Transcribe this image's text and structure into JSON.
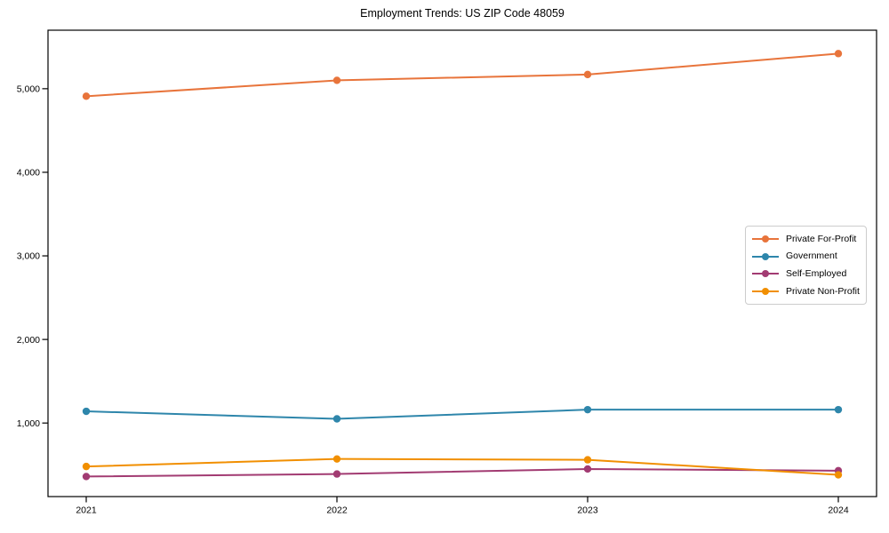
{
  "chart_data": {
    "type": "line",
    "title": "Employment Trends: US ZIP Code 48059",
    "x": [
      2021,
      2022,
      2023,
      2024
    ],
    "x_tick_labels": [
      "2021",
      "2022",
      "2023",
      "2024"
    ],
    "series": [
      {
        "name": "Private For-Profit",
        "color": "#E8743B",
        "values": [
          4910,
          5100,
          5170,
          5420
        ]
      },
      {
        "name": "Government",
        "color": "#2E86AB",
        "values": [
          1140,
          1050,
          1160,
          1160
        ]
      },
      {
        "name": "Self-Employed",
        "color": "#A23B72",
        "values": [
          360,
          390,
          450,
          430
        ]
      },
      {
        "name": "Private Non-Profit",
        "color": "#F18F01",
        "values": [
          480,
          570,
          560,
          380
        ]
      }
    ],
    "y_ticks": [
      1000,
      2000,
      3000,
      4000,
      5000
    ],
    "y_tick_labels": [
      "1,000",
      "2,000",
      "3,000",
      "4,000",
      "5,000"
    ],
    "ylim": [
      120,
      5700
    ],
    "grid": false,
    "legend_position": "center-right",
    "marker": "circle",
    "xlabel": "",
    "ylabel": "",
    "frame_color": "#000000",
    "tick_color": "#000000"
  }
}
